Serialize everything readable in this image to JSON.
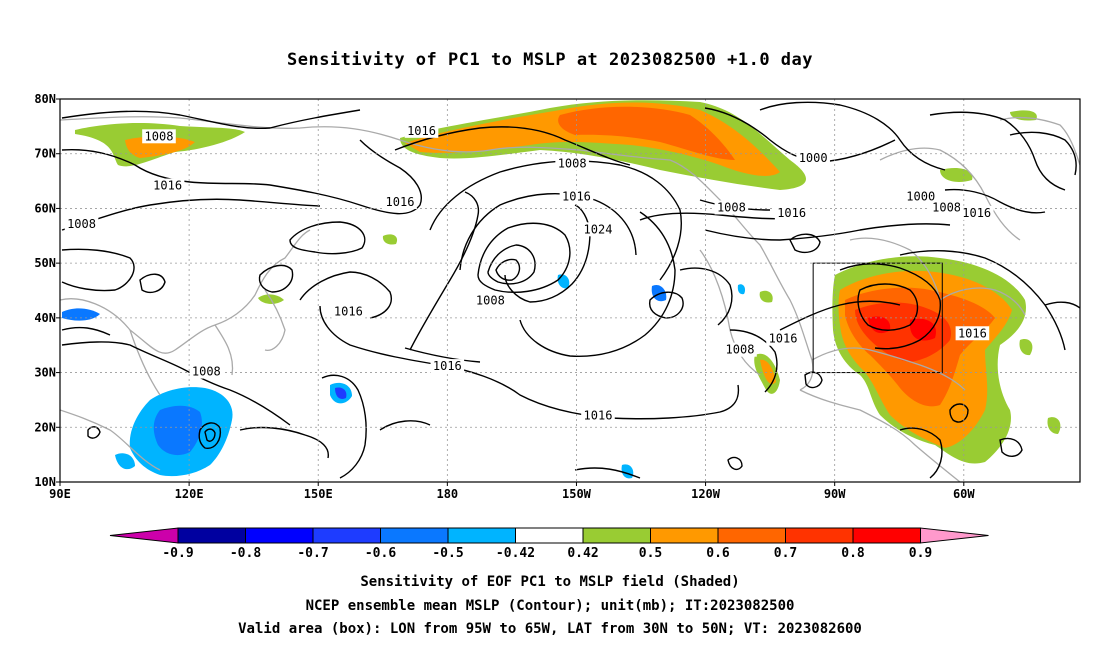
{
  "title": "Sensitivity of PC1 to MSLP at 2023082500 +1.0 day",
  "map": {
    "lat_labels": [
      "80N",
      "70N",
      "60N",
      "50N",
      "40N",
      "30N",
      "20N",
      "10N"
    ],
    "lon_labels": [
      "90E",
      "120E",
      "150E",
      "180",
      "150W",
      "120W",
      "90W",
      "60W"
    ],
    "contour_labels": [
      {
        "text": "1008",
        "lon": 113,
        "lat": 73
      },
      {
        "text": "1016",
        "lon": 174,
        "lat": 74
      },
      {
        "text": "1008",
        "lon": -151,
        "lat": 68
      },
      {
        "text": "1000",
        "lon": -95,
        "lat": 69
      },
      {
        "text": "1016",
        "lon": -150,
        "lat": 62
      },
      {
        "text": "1008",
        "lon": -114,
        "lat": 60
      },
      {
        "text": "1016",
        "lon": -100,
        "lat": 59
      },
      {
        "text": "1000",
        "lon": -70,
        "lat": 62
      },
      {
        "text": "1008",
        "lon": -64,
        "lat": 60
      },
      {
        "text": "1016",
        "lon": -57,
        "lat": 59
      },
      {
        "text": "1016",
        "lon": 115,
        "lat": 64
      },
      {
        "text": "1016",
        "lon": 169,
        "lat": 61
      },
      {
        "text": "1008",
        "lon": 95,
        "lat": 57
      },
      {
        "text": "1024",
        "lon": -145,
        "lat": 56
      },
      {
        "text": "1008",
        "lon": -170,
        "lat": 43
      },
      {
        "text": "1016",
        "lon": 157,
        "lat": 41
      },
      {
        "text": "1016",
        "lon": -102,
        "lat": 36
      },
      {
        "text": "1008",
        "lon": -112,
        "lat": 34
      },
      {
        "text": "1016",
        "lon": -58,
        "lat": 37
      },
      {
        "text": "1008",
        "lon": 124,
        "lat": 30
      },
      {
        "text": "1016",
        "lon": -180,
        "lat": 31
      },
      {
        "text": "1016",
        "lon": -145,
        "lat": 22
      }
    ],
    "valid_box": {
      "lon_min": -95,
      "lon_max": -65,
      "lat_min": 30,
      "lat_max": 50
    }
  },
  "colorbar": {
    "labels": [
      "-0.9",
      "-0.8",
      "-0.7",
      "-0.6",
      "-0.5",
      "-0.42",
      "0.42",
      "0.5",
      "0.6",
      "0.7",
      "0.8",
      "0.9"
    ],
    "colors": [
      "#0000a0",
      "#0000ff",
      "#1e3cff",
      "#0a78ff",
      "#00b4ff",
      "#ffffff",
      "#99cc33",
      "#ff9900",
      "#ff6600",
      "#ff3300",
      "#ff0000"
    ],
    "low_end_color": "#cc00aa",
    "high_end_color": "#ff99cc"
  },
  "caption": {
    "line1": "Sensitivity of EOF PC1 to MSLP field (Shaded)",
    "line2": "NCEP ensemble mean MSLP (Contour); unit(mb); IT:2023082500",
    "line3": "Valid area (box): LON from 95W to 65W, LAT from 30N to 50N; VT: 2023082600"
  }
}
